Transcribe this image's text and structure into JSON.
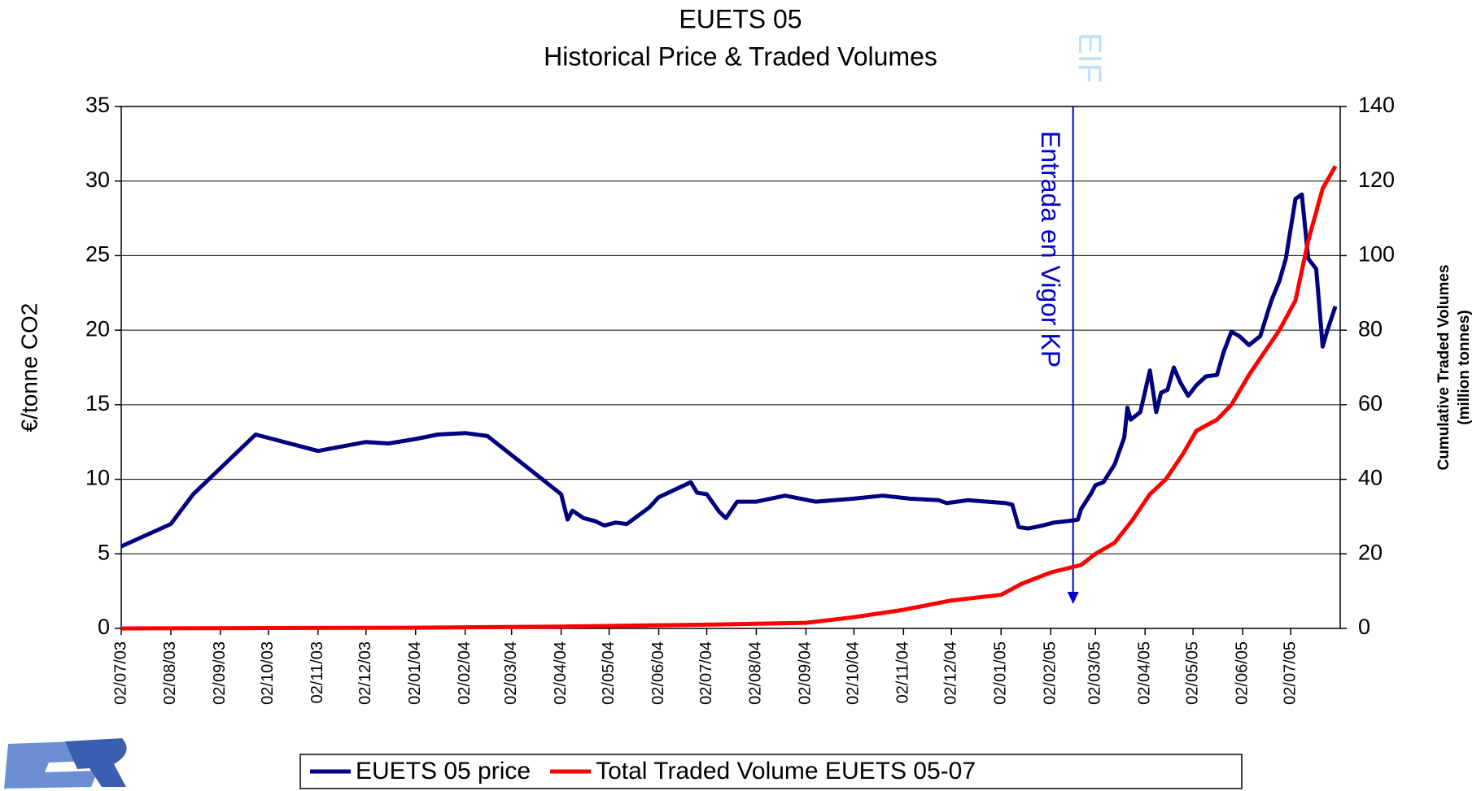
{
  "chart_data": {
    "type": "line",
    "title": "EUETS 05",
    "subtitle": "Historical Price & Traded Volumes",
    "y_label": "€/tonne CO2",
    "y2_label": [
      "Cumulative Traded Volumes",
      "(million tonnes)"
    ],
    "annotation": {
      "text": "Entrada  en  Vigor KP",
      "x": "16/02/05"
    },
    "watermark": "EIF",
    "xlim": [
      "02/07/03",
      "02/08/05"
    ],
    "xticks": [
      "02/07/03",
      "02/08/03",
      "02/09/03",
      "02/10/03",
      "02/11/03",
      "02/12/03",
      "02/01/04",
      "02/02/04",
      "02/03/04",
      "02/04/04",
      "02/05/04",
      "02/06/04",
      "02/07/04",
      "02/08/04",
      "02/09/04",
      "02/10/04",
      "02/11/04",
      "02/12/04",
      "02/01/05",
      "02/02/05",
      "02/03/05",
      "02/04/05",
      "02/05/05",
      "02/06/05",
      "02/07/05"
    ],
    "ylim": [
      0,
      35
    ],
    "yticks": [
      0,
      5,
      10,
      15,
      20,
      25,
      30,
      35
    ],
    "y2lim": [
      0,
      140
    ],
    "y2ticks": [
      0,
      20,
      40,
      60,
      80,
      100,
      120,
      140
    ],
    "grid": true,
    "legend": "bottom",
    "series": [
      {
        "name": "EUETS 05 price",
        "color": "#000080",
        "x": [
          "02/07/03",
          "02/08/03",
          "16/08/03",
          "24/09/03",
          "02/11/03",
          "02/12/03",
          "16/12/03",
          "02/01/04",
          "16/01/04",
          "02/02/04",
          "16/02/04",
          "02/04/04",
          "06/04/04",
          "09/04/04",
          "16/04/04",
          "23/04/04",
          "29/04/04",
          "06/05/04",
          "13/05/04",
          "27/05/04",
          "02/06/04",
          "16/06/04",
          "22/06/04",
          "26/06/04",
          "02/07/04",
          "10/07/04",
          "14/07/04",
          "21/07/04",
          "02/08/04",
          "20/08/04",
          "08/09/04",
          "02/10/04",
          "20/10/04",
          "06/11/04",
          "24/11/04",
          "29/11/04",
          "12/12/04",
          "05/01/05",
          "09/01/05",
          "13/01/05",
          "19/01/05",
          "28/01/05",
          "04/02/05",
          "13/02/05",
          "19/02/05",
          "21/02/05",
          "27/02/05",
          "02/03/05",
          "07/03/05",
          "14/03/05",
          "20/03/05",
          "22/03/05",
          "24/03/05",
          "30/03/05",
          "05/04/05",
          "09/04/05",
          "12/04/05",
          "16/04/05",
          "20/04/05",
          "24/04/05",
          "29/04/05",
          "04/05/05",
          "10/05/05",
          "17/05/05",
          "21/05/05",
          "26/05/05",
          "31/05/05",
          "06/06/05",
          "13/06/05",
          "20/06/05",
          "25/06/05",
          "29/06/05",
          "05/07/05",
          "09/07/05",
          "13/07/05",
          "18/07/05",
          "22/07/05",
          "25/07/05",
          "30/07/05"
        ],
        "values": [
          5.5,
          7.0,
          9.0,
          13.0,
          11.9,
          12.5,
          12.4,
          12.7,
          13.0,
          13.1,
          12.9,
          9.0,
          7.3,
          7.9,
          7.4,
          7.2,
          6.9,
          7.1,
          7.0,
          8.1,
          8.8,
          9.5,
          9.8,
          9.1,
          9.0,
          7.8,
          7.4,
          8.5,
          8.5,
          8.9,
          8.5,
          8.7,
          8.9,
          8.7,
          8.6,
          8.4,
          8.6,
          8.4,
          8.3,
          6.8,
          6.7,
          6.9,
          7.1,
          7.2,
          7.3,
          8.0,
          9.0,
          9.6,
          9.8,
          11.0,
          12.8,
          14.8,
          14.0,
          14.5,
          17.3,
          14.5,
          15.8,
          16.0,
          17.5,
          16.5,
          15.6,
          16.3,
          16.9,
          17.0,
          18.5,
          19.9,
          19.6,
          19.0,
          19.6,
          22.0,
          23.3,
          24.8,
          28.8,
          29.1,
          24.8,
          24.1,
          18.9,
          20.0,
          21.6
        ]
      },
      {
        "name": "Total Traded Volume EUETS 05-07",
        "color": "#ff0000",
        "axis": "y2",
        "x": [
          "02/07/03",
          "02/01/04",
          "02/04/04",
          "02/07/04",
          "02/09/04",
          "02/10/04",
          "02/11/04",
          "02/12/04",
          "02/01/05",
          "15/01/05",
          "02/02/05",
          "21/02/05",
          "02/03/05",
          "14/03/05",
          "25/03/05",
          "05/04/05",
          "15/04/05",
          "26/04/05",
          "04/05/05",
          "17/05/05",
          "26/05/05",
          "06/06/05",
          "17/06/05",
          "25/06/05",
          "05/07/05",
          "13/07/05",
          "22/07/05",
          "30/07/05"
        ],
        "values": [
          0,
          0.2,
          0.5,
          1,
          1.5,
          3,
          5,
          7.5,
          9,
          12,
          15,
          17,
          20,
          23,
          29,
          36,
          40,
          47,
          53,
          56,
          60,
          68,
          75,
          80,
          88,
          104,
          118,
          124
        ]
      }
    ]
  }
}
